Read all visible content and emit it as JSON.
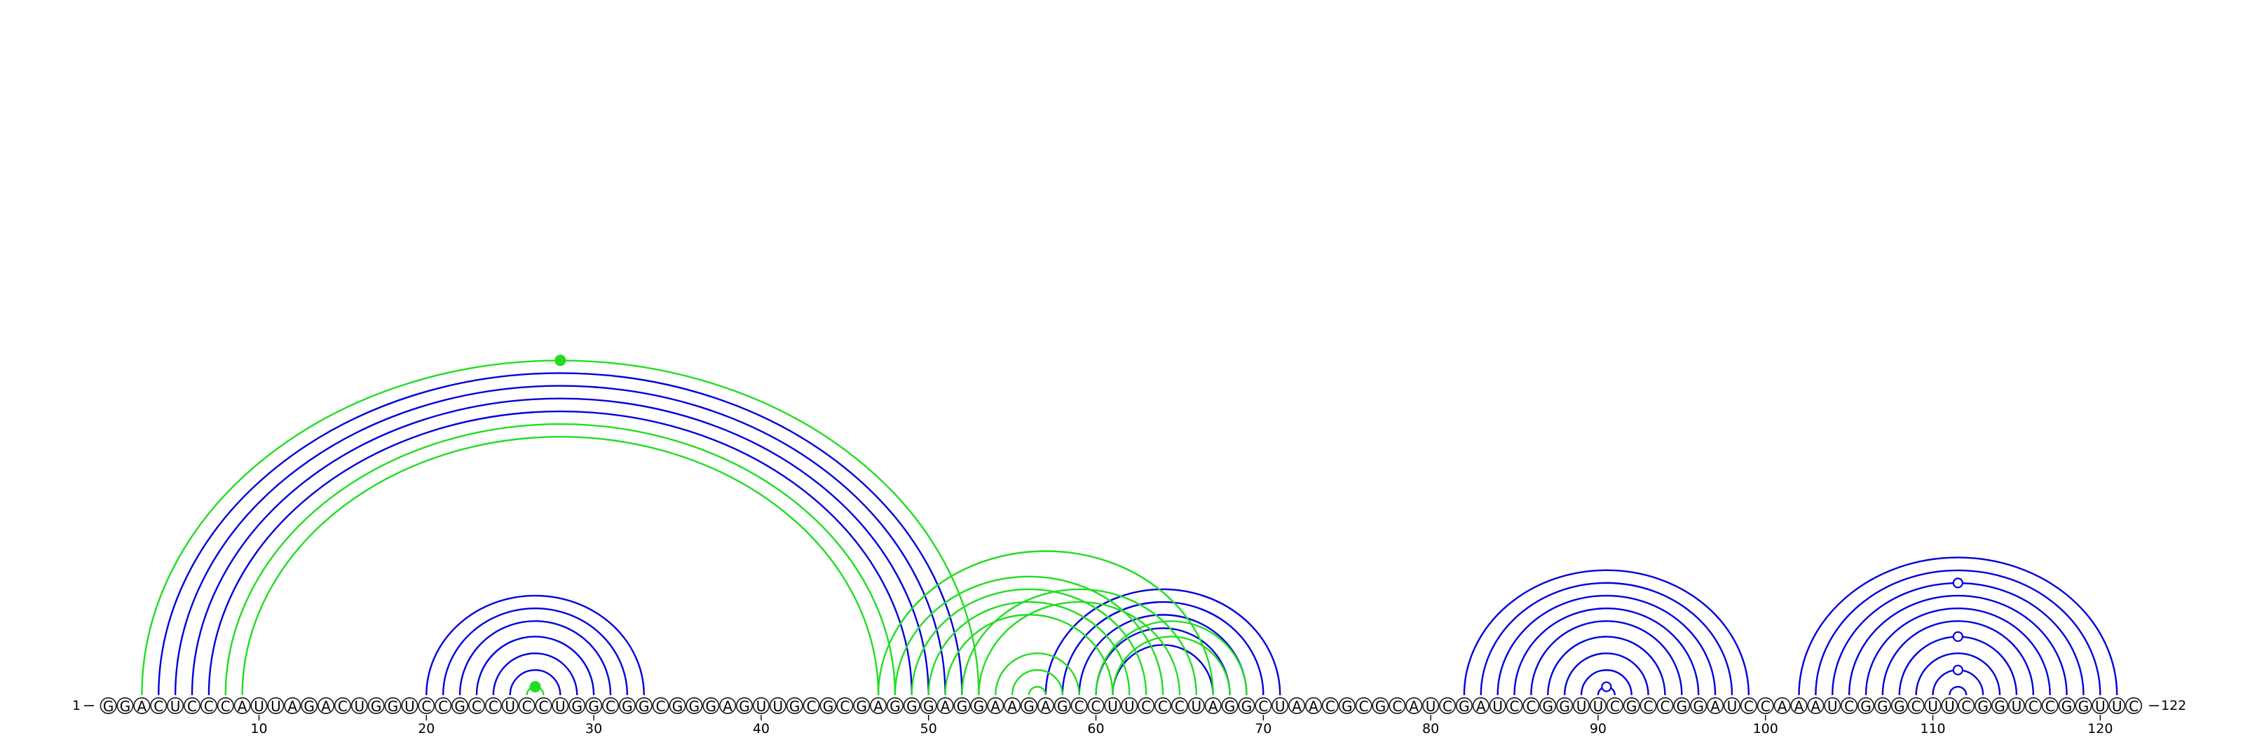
{
  "diagram": {
    "type": "rna-arc-diagram",
    "sequence": "GGACUCCCAUUAGACUGGUCCGCCUCCUGGCGGCGGGAGUUGCGCGAGGGAGGAAGAGCCUUCCCUAGGCUAACGCGCAUCGAUCCGGUUCGCCGGAUCCAAAUCGGGCUUCGGUCCGGUUC",
    "start_label": "1",
    "end_label": "122",
    "ticks": [
      10,
      20,
      30,
      40,
      50,
      60,
      70,
      80,
      90,
      100,
      110,
      120
    ],
    "colors": {
      "structure_a": "#0000dd",
      "structure_b": "#22dd22",
      "nucleotide_outline": "#1a1a1a",
      "text": "#000000"
    },
    "arc_groups": [
      {
        "color": "structure_a",
        "pairs": [
          [
            4,
            52
          ],
          [
            5,
            51
          ],
          [
            6,
            50
          ],
          [
            7,
            49
          ]
        ]
      },
      {
        "color": "structure_a",
        "pairs": [
          [
            20,
            33
          ],
          [
            21,
            32
          ],
          [
            22,
            31
          ],
          [
            23,
            30
          ],
          [
            24,
            29
          ],
          [
            25,
            28
          ]
        ]
      },
      {
        "color": "structure_a",
        "pairs": [
          [
            57,
            71
          ],
          [
            58,
            70
          ],
          [
            59,
            69
          ],
          [
            60,
            68
          ],
          [
            61,
            67
          ]
        ]
      },
      {
        "color": "structure_a",
        "pairs": [
          [
            82,
            99
          ],
          [
            83,
            98
          ],
          [
            84,
            97
          ],
          [
            85,
            96
          ],
          [
            86,
            95
          ],
          [
            87,
            94
          ],
          [
            88,
            93
          ],
          [
            89,
            92
          ],
          [
            90,
            91
          ]
        ]
      },
      {
        "color": "structure_a",
        "pairs": [
          [
            102,
            121
          ],
          [
            103,
            120
          ],
          [
            104,
            119
          ],
          [
            105,
            118
          ],
          [
            106,
            117
          ],
          [
            107,
            116
          ],
          [
            108,
            115
          ],
          [
            109,
            114
          ],
          [
            110,
            113
          ],
          [
            111,
            112
          ]
        ]
      },
      {
        "color": "structure_b",
        "pairs": [
          [
            3,
            53
          ],
          [
            8,
            48
          ],
          [
            9,
            47
          ]
        ]
      },
      {
        "color": "structure_b",
        "pairs": [
          [
            26,
            27
          ]
        ]
      },
      {
        "color": "structure_b",
        "pairs": [
          [
            48,
            64
          ],
          [
            49,
            63
          ],
          [
            50,
            62
          ],
          [
            51,
            61
          ],
          [
            52,
            66
          ],
          [
            53,
            65
          ]
        ]
      },
      {
        "color": "structure_b",
        "pairs": [
          [
            54,
            59
          ],
          [
            55,
            58
          ],
          [
            56,
            57
          ]
        ]
      },
      {
        "color": "structure_b",
        "pairs": [
          [
            47,
            67
          ],
          [
            60,
            69
          ],
          [
            61,
            68
          ]
        ]
      }
    ],
    "markers": [
      {
        "color": "structure_b",
        "filled": true,
        "pair": [
          3,
          53
        ]
      },
      {
        "color": "structure_b",
        "filled": true,
        "pair": [
          26,
          27
        ]
      },
      {
        "color": "structure_a",
        "filled": false,
        "pair": [
          90,
          91
        ]
      },
      {
        "color": "structure_a",
        "filled": false,
        "pair": [
          104,
          119
        ]
      },
      {
        "color": "structure_a",
        "filled": false,
        "pair": [
          108,
          115
        ]
      },
      {
        "color": "structure_a",
        "filled": false,
        "pair": [
          110,
          113
        ]
      }
    ]
  }
}
